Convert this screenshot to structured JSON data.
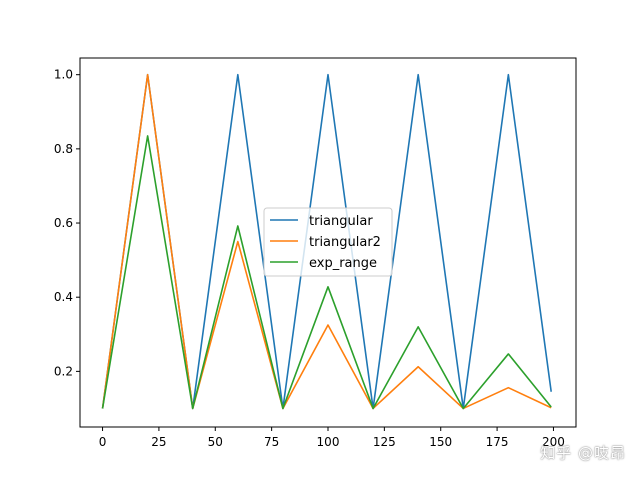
{
  "chart_data": {
    "type": "line",
    "xlim": [
      -10,
      210
    ],
    "ylim": [
      0.05,
      1.045
    ],
    "xticks": [
      0,
      25,
      50,
      75,
      100,
      125,
      150,
      175,
      200
    ],
    "yticks": [
      0.2,
      0.4,
      0.6,
      0.8,
      1.0
    ],
    "xtick_labels": [
      "0",
      "25",
      "50",
      "75",
      "100",
      "125",
      "150",
      "175",
      "200"
    ],
    "ytick_labels": [
      "0.2",
      "0.4",
      "0.6",
      "0.8",
      "1.0"
    ],
    "grid": false,
    "legend_position": "center",
    "series": [
      {
        "name": "triangular",
        "color": "#1f77b4",
        "x": [
          0,
          20,
          40,
          60,
          80,
          100,
          120,
          140,
          160,
          180,
          199
        ],
        "y": [
          0.1,
          1.0,
          0.1,
          1.0,
          0.1,
          1.0,
          0.1,
          1.0,
          0.1,
          1.0,
          0.145
        ]
      },
      {
        "name": "triangular2",
        "color": "#ff7f0e",
        "x": [
          0,
          20,
          40,
          60,
          80,
          100,
          120,
          140,
          160,
          180,
          199
        ],
        "y": [
          0.1,
          1.0,
          0.1,
          0.55,
          0.1,
          0.325,
          0.1,
          0.2125,
          0.1,
          0.156,
          0.102
        ]
      },
      {
        "name": "exp_range",
        "color": "#2ca02c",
        "x": [
          0,
          20,
          40,
          60,
          80,
          100,
          120,
          140,
          160,
          180,
          199
        ],
        "y": [
          0.1,
          0.835,
          0.1,
          0.592,
          0.1,
          0.428,
          0.1,
          0.32,
          0.1,
          0.247,
          0.104
        ]
      }
    ]
  },
  "watermark": "知乎 @吱昂"
}
